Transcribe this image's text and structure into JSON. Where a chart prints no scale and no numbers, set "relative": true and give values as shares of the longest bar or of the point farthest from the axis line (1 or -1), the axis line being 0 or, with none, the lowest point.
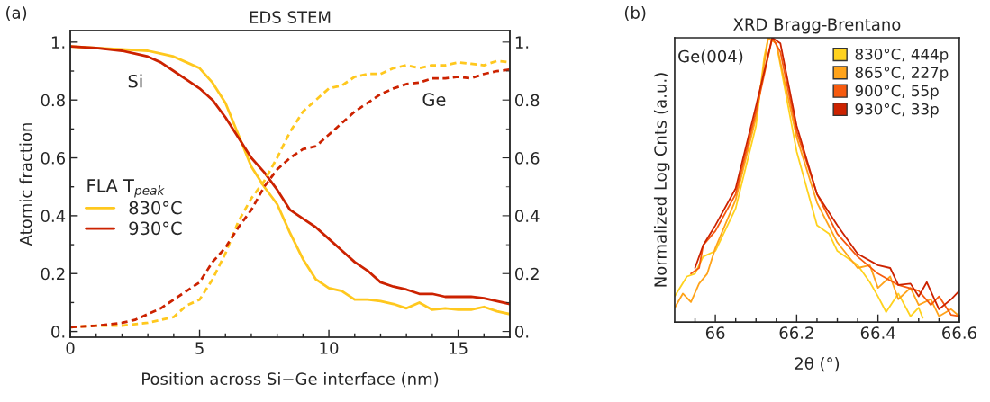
{
  "chart_data": [
    {
      "type": "line",
      "title": "EDS STEM",
      "xlabel": "Position across Si−Ge interface (nm)",
      "ylabel": "Atomic fraction",
      "legend_title": "FLA T$_{peak}$",
      "legend": "left",
      "marker": "none",
      "annotations": [
        "(a)",
        "Si",
        "Ge"
      ],
      "xlim": [
        0,
        17
      ],
      "xticks": [
        0,
        {
          "value": 1,
          "label": null
        },
        {
          "value": 2,
          "label": null
        },
        {
          "value": 3,
          "label": null
        },
        {
          "value": 4,
          "label": null
        },
        5,
        {
          "value": 6,
          "label": null
        },
        {
          "value": 7,
          "label": null
        },
        {
          "value": 8,
          "label": null
        },
        {
          "value": 9,
          "label": null
        },
        10,
        {
          "value": 11,
          "label": null
        },
        {
          "value": 12,
          "label": null
        },
        {
          "value": 13,
          "label": null
        },
        {
          "value": 14,
          "label": null
        },
        15,
        {
          "value": 16,
          "label": null
        }
      ],
      "ylim": [
        -0.02,
        1.04
      ],
      "yticks": [
        {
          "value": 0,
          "label": "0."
        },
        {
          "value": 0.1,
          "label": null
        },
        0.2,
        {
          "value": 0.3,
          "label": null
        },
        0.4,
        {
          "value": 0.5,
          "label": null
        },
        0.6,
        {
          "value": 0.7,
          "label": null
        },
        0.8,
        {
          "value": 0.9,
          "label": null
        },
        {
          "value": 1,
          "label": "1."
        }
      ],
      "y2lim": [
        -0.02,
        1.04
      ],
      "y2ticks": [
        {
          "value": 0,
          "label": "0."
        },
        {
          "value": 0.1,
          "label": null
        },
        0.2,
        {
          "value": 0.3,
          "label": null
        },
        0.4,
        {
          "value": 0.5,
          "label": null
        },
        0.6,
        {
          "value": 0.7,
          "label": null
        },
        0.8,
        {
          "value": 0.9,
          "label": null
        },
        {
          "value": 1,
          "label": "1."
        }
      ],
      "series": [
        {
          "name": "830°C",
          "color": "#ffc81e",
          "line_style": "solid",
          "x": [
            0,
            1,
            2,
            3,
            3.5,
            4,
            4.5,
            5,
            5.5,
            6,
            6.5,
            7,
            7.5,
            8,
            8.5,
            9,
            9.5,
            10,
            10.5,
            11,
            11.5,
            12,
            12.5,
            13,
            13.5,
            14,
            14.5,
            15,
            15.5,
            16,
            16.5,
            17
          ],
          "values": [
            0.985,
            0.98,
            0.975,
            0.97,
            0.96,
            0.95,
            0.93,
            0.91,
            0.86,
            0.79,
            0.68,
            0.57,
            0.5,
            0.44,
            0.34,
            0.25,
            0.18,
            0.15,
            0.14,
            0.11,
            0.11,
            0.105,
            0.095,
            0.08,
            0.1,
            0.075,
            0.08,
            0.075,
            0.075,
            0.085,
            0.07,
            0.06
          ]
        },
        {
          "name": "930°C",
          "color": "#cc2200",
          "line_style": "solid",
          "x": [
            0,
            1,
            2,
            2.5,
            3,
            3.5,
            4,
            4.5,
            5,
            5.5,
            6,
            6.5,
            7,
            7.5,
            8,
            8.5,
            9,
            9.5,
            10,
            10.5,
            11,
            11.5,
            12,
            12.5,
            13,
            13.5,
            14,
            14.5,
            15,
            15.5,
            16,
            16.5,
            17
          ],
          "values": [
            0.985,
            0.98,
            0.97,
            0.96,
            0.95,
            0.93,
            0.9,
            0.87,
            0.84,
            0.8,
            0.74,
            0.67,
            0.6,
            0.55,
            0.49,
            0.42,
            0.39,
            0.36,
            0.32,
            0.28,
            0.24,
            0.21,
            0.17,
            0.155,
            0.145,
            0.13,
            0.13,
            0.12,
            0.12,
            0.12,
            0.115,
            0.105,
            0.095
          ]
        },
        {
          "color": "#ffc81e",
          "line_style": "dashed",
          "x": [
            0,
            1,
            2,
            3,
            4,
            4.5,
            5,
            5.5,
            6,
            6.5,
            7,
            7.5,
            8,
            8.5,
            9,
            9.5,
            10,
            10.5,
            11,
            11.5,
            12,
            12.5,
            13,
            13.5,
            14,
            14.5,
            15,
            15.5,
            16,
            16.5,
            17
          ],
          "values": [
            0.015,
            0.02,
            0.02,
            0.03,
            0.05,
            0.09,
            0.11,
            0.18,
            0.27,
            0.38,
            0.46,
            0.52,
            0.6,
            0.69,
            0.76,
            0.8,
            0.84,
            0.85,
            0.88,
            0.89,
            0.89,
            0.91,
            0.92,
            0.91,
            0.92,
            0.92,
            0.93,
            0.925,
            0.92,
            0.935,
            0.93
          ]
        },
        {
          "color": "#cc2200",
          "line_style": "dashed",
          "x": [
            0,
            1,
            2,
            2.5,
            3,
            3.5,
            4,
            4.5,
            5,
            5.5,
            6,
            6.5,
            7,
            7.5,
            8,
            8.5,
            9,
            9.5,
            10,
            10.5,
            11,
            11.5,
            12,
            12.5,
            13,
            13.5,
            14,
            14.5,
            15,
            15.5,
            16,
            16.5,
            17
          ],
          "values": [
            0.015,
            0.02,
            0.03,
            0.04,
            0.06,
            0.08,
            0.11,
            0.14,
            0.17,
            0.24,
            0.29,
            0.36,
            0.42,
            0.5,
            0.56,
            0.6,
            0.63,
            0.64,
            0.68,
            0.72,
            0.76,
            0.79,
            0.82,
            0.84,
            0.855,
            0.86,
            0.875,
            0.875,
            0.88,
            0.875,
            0.89,
            0.9,
            0.905
          ]
        }
      ]
    },
    {
      "type": "line",
      "title": "XRD Bragg-Brentano",
      "xlabel": "2θ (°)",
      "ylabel": "Normalized Log Cnts (a.u.)",
      "relative": true,
      "legend": "top right",
      "marker": "none",
      "annotations": [
        "(b)",
        "Ge(004)"
      ],
      "xlim": [
        65.9,
        66.6
      ],
      "xticks": [
        {
          "value": 65.95,
          "label": null
        },
        66,
        {
          "value": 66.05,
          "label": null
        },
        {
          "value": 66.1,
          "label": null
        },
        {
          "value": 66.15,
          "label": null
        },
        66.2,
        {
          "value": 66.25,
          "label": null
        },
        {
          "value": 66.3,
          "label": null
        },
        {
          "value": 66.35,
          "label": null
        },
        66.4,
        {
          "value": 66.45,
          "label": null
        },
        {
          "value": 66.5,
          "label": null
        },
        {
          "value": 66.55,
          "label": null
        },
        66.6
      ],
      "series": [
        {
          "name": "830°C, 444p",
          "color": "#ffd21e",
          "x": [
            65.9,
            65.93,
            65.95,
            65.97,
            66.0,
            66.05,
            66.1,
            66.12,
            66.13,
            66.15,
            66.2,
            66.25,
            66.28,
            66.3,
            66.35,
            66.38,
            66.4,
            66.42,
            66.45,
            66.48,
            66.5,
            66.51
          ],
          "values": [
            0.09,
            0.16,
            0.17,
            0.23,
            0.25,
            0.4,
            0.69,
            0.93,
            1.0,
            0.98,
            0.6,
            0.34,
            0.31,
            0.25,
            0.2,
            0.14,
            0.09,
            0.035,
            0.1,
            0.02,
            0.05,
            0.015
          ]
        },
        {
          "name": "865°C, 227p",
          "color": "#ffa31a",
          "x": [
            65.9,
            65.92,
            65.94,
            65.96,
            65.98,
            66.0,
            66.05,
            66.1,
            66.13,
            66.15,
            66.2,
            66.25,
            66.3,
            66.35,
            66.38,
            66.4,
            66.43,
            66.45,
            66.48,
            66.5,
            66.53,
            66.55,
            66.58,
            66.6
          ],
          "values": [
            0.05,
            0.1,
            0.07,
            0.135,
            0.17,
            0.26,
            0.43,
            0.72,
            1.0,
            0.98,
            0.65,
            0.42,
            0.28,
            0.19,
            0.2,
            0.12,
            0.16,
            0.08,
            0.12,
            0.06,
            0.08,
            0.02,
            0.045,
            0.02
          ]
        },
        {
          "name": "900°C, 55p",
          "color": "#f65a0e",
          "x": [
            65.94,
            65.96,
            65.97,
            66.0,
            66.05,
            66.1,
            66.14,
            66.16,
            66.2,
            66.25,
            66.3,
            66.35,
            66.4,
            66.45,
            66.5,
            66.53,
            66.55,
            66.58,
            66.6
          ],
          "values": [
            0.17,
            0.19,
            0.27,
            0.32,
            0.45,
            0.74,
            1.0,
            0.95,
            0.67,
            0.45,
            0.31,
            0.23,
            0.17,
            0.13,
            0.11,
            0.06,
            0.09,
            0.025,
            0.02
          ]
        },
        {
          "name": "930°C, 33p",
          "color": "#cc2200",
          "x": [
            65.95,
            65.97,
            66.0,
            66.05,
            66.1,
            66.14,
            66.16,
            66.2,
            66.25,
            66.3,
            66.35,
            66.4,
            66.43,
            66.45,
            66.48,
            66.5,
            66.52,
            66.55,
            66.58,
            66.6
          ],
          "values": [
            0.19,
            0.27,
            0.34,
            0.47,
            0.76,
            1.0,
            0.98,
            0.69,
            0.45,
            0.34,
            0.24,
            0.2,
            0.19,
            0.13,
            0.135,
            0.09,
            0.14,
            0.045,
            0.08,
            0.11
          ]
        }
      ]
    }
  ]
}
